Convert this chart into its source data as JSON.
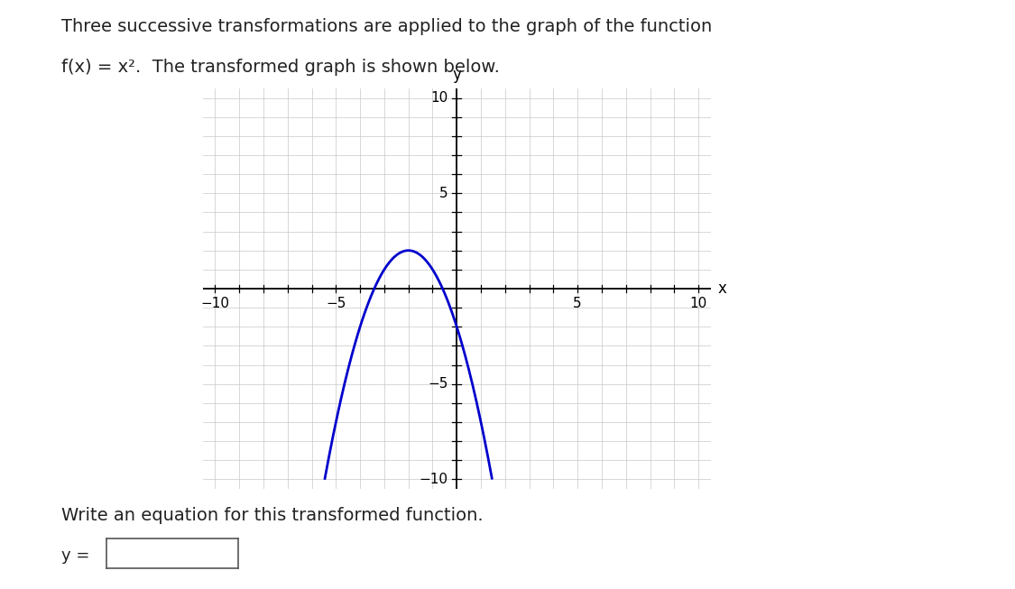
{
  "title_line1": "Three successive transformations are applied to the graph of the function",
  "title_line2": "f(x) = x².  The transformed graph is shown below.",
  "xlabel": "x",
  "ylabel": "y",
  "xlim": [
    -10,
    10
  ],
  "ylim": [
    -10,
    10
  ],
  "grid_color": "#c8c8c8",
  "axis_color": "#000000",
  "curve_color": "#0000cc",
  "curve_linewidth": 2.0,
  "background_color": "#ffffff",
  "vertex_x": -2,
  "vertex_y": 2,
  "a": -1,
  "bottom_text": "Write an equation for this transformed function.",
  "answer_label": "y =",
  "fig_width": 11.25,
  "fig_height": 6.53,
  "font_family": "DejaVu Sans"
}
